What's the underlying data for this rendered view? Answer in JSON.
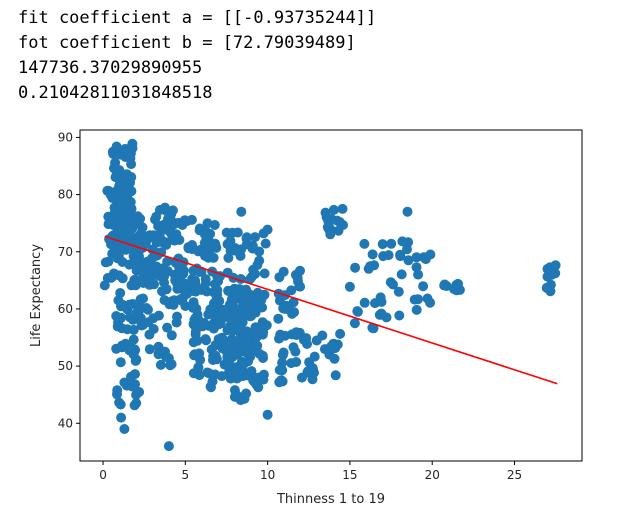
{
  "output": {
    "line1": "fit coefficient a = [[-0.93735244]]",
    "line2": "fot coefficient b = [72.79039489]",
    "line3": "147736.37029890955",
    "line4": "0.21042811031848518"
  },
  "chart_data": {
    "type": "scatter",
    "title": "",
    "xlabel": "Thinness 1 to 19",
    "ylabel": "Life Expectancy",
    "xlim": [
      -1.4,
      29.1
    ],
    "ylim": [
      33.4,
      91.3
    ],
    "xticks": [
      0,
      5,
      10,
      15,
      20,
      25
    ],
    "yticks": [
      40,
      50,
      60,
      70,
      80,
      90
    ],
    "grid": false,
    "colors": {
      "points": "#1f77b4",
      "fit_line": "#ff0000"
    },
    "fit_line": {
      "a": -0.93735244,
      "b": 72.79039489,
      "x": [
        0.1,
        27.6
      ]
    },
    "clusters": [
      {
        "x": [
          0.6,
          1.8
        ],
        "y": [
          70,
          89
        ],
        "n": 110
      },
      {
        "x": [
          0.1,
          1.2
        ],
        "y": [
          64,
          82
        ],
        "n": 40
      },
      {
        "x": [
          0.8,
          2.5
        ],
        "y": [
          56,
          77
        ],
        "n": 60
      },
      {
        "x": [
          0.8,
          2.2
        ],
        "y": [
          43,
          55
        ],
        "n": 30
      },
      {
        "x": [
          2.0,
          4.5
        ],
        "y": [
          64,
          78
        ],
        "n": 80
      },
      {
        "x": [
          2.5,
          4.5
        ],
        "y": [
          50,
          66
        ],
        "n": 30
      },
      {
        "x": [
          4.5,
          7.0
        ],
        "y": [
          60,
          76
        ],
        "n": 70
      },
      {
        "x": [
          5.5,
          9.0
        ],
        "y": [
          48,
          66
        ],
        "n": 110
      },
      {
        "x": [
          6.5,
          9.8
        ],
        "y": [
          44,
          62
        ],
        "n": 90
      },
      {
        "x": [
          7.5,
          10.0
        ],
        "y": [
          55,
          74
        ],
        "n": 60
      },
      {
        "x": [
          10.6,
          12.0
        ],
        "y": [
          47,
          67
        ],
        "n": 40
      },
      {
        "x": [
          12.0,
          14.5
        ],
        "y": [
          47,
          56
        ],
        "n": 25
      },
      {
        "x": [
          13.5,
          14.6
        ],
        "y": [
          73,
          78
        ],
        "n": 15
      },
      {
        "x": [
          15.0,
          20.0
        ],
        "y": [
          56,
          72
        ],
        "n": 45
      },
      {
        "x": [
          20.5,
          22.0
        ],
        "y": [
          63,
          64.5
        ],
        "n": 10
      },
      {
        "x": [
          26.9,
          27.6
        ],
        "y": [
          62.5,
          68
        ],
        "n": 10
      }
    ],
    "points": [
      {
        "x": 4.0,
        "y": 36
      },
      {
        "x": 1.1,
        "y": 41
      },
      {
        "x": 1.3,
        "y": 39
      },
      {
        "x": 10.0,
        "y": 41.5
      },
      {
        "x": 18.5,
        "y": 77
      },
      {
        "x": 8.4,
        "y": 77
      },
      {
        "x": 15.3,
        "y": 57.5
      }
    ]
  }
}
